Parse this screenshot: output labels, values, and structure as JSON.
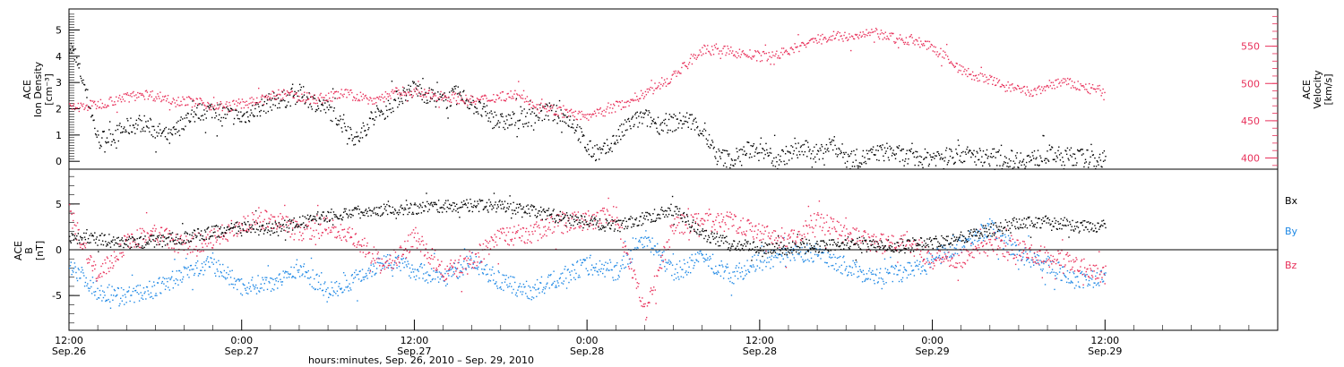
{
  "colors": {
    "black": "#000000",
    "bx": "#000000",
    "by": "#1e88e5",
    "bz": "#e8305a",
    "velocity": "#e8305a",
    "density": "#000000"
  },
  "chart_data": [
    {
      "type": "scatter",
      "panel": "top",
      "ylabel_left": [
        "ACE",
        "Ion Density",
        "[cm⁻³]"
      ],
      "ylabel_right": [
        "ACE",
        "Velocity",
        "[km/s]"
      ],
      "ylim_left": [
        -0.3,
        5.8
      ],
      "ylim_right": [
        385,
        600
      ],
      "ticks_left": [
        "0",
        "1",
        "2",
        "3",
        "4",
        "5"
      ],
      "ticks_left_values": [
        0,
        1,
        2,
        3,
        4,
        5
      ],
      "ticks_right": [
        "400",
        "450",
        "500",
        "550"
      ],
      "ticks_right_values": [
        400,
        450,
        500,
        550
      ],
      "series": [
        {
          "axis": "left",
          "color": "#000000",
          "points": [
            [
              0,
              4.5
            ],
            [
              1,
              3.0
            ],
            [
              2,
              0.8
            ],
            [
              3,
              1.0
            ],
            [
              4,
              1.3
            ],
            [
              5,
              1.5
            ],
            [
              6,
              1.2
            ],
            [
              7,
              0.9
            ],
            [
              8,
              1.6
            ],
            [
              9,
              1.9
            ],
            [
              10,
              2.0
            ],
            [
              11,
              1.8
            ],
            [
              12,
              1.7
            ],
            [
              13,
              2.0
            ],
            [
              14,
              2.3
            ],
            [
              15,
              2.4
            ],
            [
              16,
              2.6
            ],
            [
              17,
              2.3
            ],
            [
              18,
              2.0
            ],
            [
              19,
              1.5
            ],
            [
              20,
              0.8
            ],
            [
              21,
              1.7
            ],
            [
              22,
              2.0
            ],
            [
              23,
              2.5
            ],
            [
              24,
              2.8
            ],
            [
              25,
              2.5
            ],
            [
              26,
              2.3
            ],
            [
              27,
              2.6
            ],
            [
              28,
              2.2
            ],
            [
              29,
              1.8
            ],
            [
              30,
              1.5
            ],
            [
              31,
              1.6
            ],
            [
              32,
              1.7
            ],
            [
              33,
              1.9
            ],
            [
              34,
              1.8
            ],
            [
              35,
              1.5
            ],
            [
              36,
              0.5
            ],
            [
              37,
              0.3
            ],
            [
              38,
              0.9
            ],
            [
              39,
              1.5
            ],
            [
              40,
              1.7
            ],
            [
              41,
              1.4
            ],
            [
              42,
              1.5
            ],
            [
              43,
              1.6
            ],
            [
              44,
              1.2
            ],
            [
              45,
              0.2
            ],
            [
              46,
              0.1
            ],
            [
              47,
              0.4
            ],
            [
              48,
              0.6
            ],
            [
              49,
              0.1
            ],
            [
              50,
              0.3
            ],
            [
              51,
              0.5
            ],
            [
              52,
              0.3
            ],
            [
              53,
              0.7
            ],
            [
              54,
              0.2
            ],
            [
              55,
              0.1
            ],
            [
              56,
              0.3
            ],
            [
              57,
              0.4
            ],
            [
              58,
              0.2
            ],
            [
              59,
              0.1
            ],
            [
              60,
              0.2
            ],
            [
              61,
              0.2
            ],
            [
              62,
              0.3
            ],
            [
              63,
              0.2
            ],
            [
              64,
              0.2
            ],
            [
              65,
              0.1
            ],
            [
              66,
              0.1
            ],
            [
              67,
              0.1
            ],
            [
              68,
              0.3
            ],
            [
              69,
              0.2
            ],
            [
              70,
              0.2
            ],
            [
              71,
              0.1
            ],
            [
              72,
              0.1
            ]
          ]
        },
        {
          "axis": "right",
          "color": "#e8305a",
          "points": [
            [
              0,
              468
            ],
            [
              1,
              470
            ],
            [
              2,
              473
            ],
            [
              3,
              478
            ],
            [
              4,
              482
            ],
            [
              5,
              487
            ],
            [
              6,
              484
            ],
            [
              7,
              480
            ],
            [
              8,
              477
            ],
            [
              9,
              475
            ],
            [
              10,
              471
            ],
            [
              11,
              470
            ],
            [
              12,
              474
            ],
            [
              13,
              476
            ],
            [
              14,
              483
            ],
            [
              15,
              486
            ],
            [
              16,
              483
            ],
            [
              17,
              480
            ],
            [
              18,
              482
            ],
            [
              19,
              487
            ],
            [
              20,
              484
            ],
            [
              21,
              478
            ],
            [
              22,
              484
            ],
            [
              23,
              490
            ],
            [
              24,
              489
            ],
            [
              25,
              485
            ],
            [
              26,
              484
            ],
            [
              27,
              481
            ],
            [
              28,
              477
            ],
            [
              29,
              480
            ],
            [
              30,
              484
            ],
            [
              31,
              485
            ],
            [
              32,
              475
            ],
            [
              33,
              470
            ],
            [
              34,
              463
            ],
            [
              35,
              460
            ],
            [
              36,
              455
            ],
            [
              37,
              462
            ],
            [
              38,
              470
            ],
            [
              39,
              478
            ],
            [
              40,
              488
            ],
            [
              41,
              498
            ],
            [
              42,
              510
            ],
            [
              43,
              530
            ],
            [
              44,
              545
            ],
            [
              45,
              547
            ],
            [
              46,
              543
            ],
            [
              47,
              540
            ],
            [
              48,
              537
            ],
            [
              49,
              538
            ],
            [
              50,
              545
            ],
            [
              51,
              552
            ],
            [
              52,
              560
            ],
            [
              53,
              566
            ],
            [
              54,
              562
            ],
            [
              55,
              565
            ],
            [
              56,
              568
            ],
            [
              57,
              563
            ],
            [
              58,
              560
            ],
            [
              59,
              557
            ],
            [
              60,
              548
            ],
            [
              61,
              535
            ],
            [
              62,
              518
            ],
            [
              63,
              510
            ],
            [
              64,
              505
            ],
            [
              65,
              497
            ],
            [
              66,
              492
            ],
            [
              67,
              488
            ],
            [
              68,
              498
            ],
            [
              69,
              503
            ],
            [
              70,
              498
            ],
            [
              71,
              493
            ],
            [
              72,
              490
            ]
          ]
        }
      ]
    },
    {
      "type": "scatter",
      "panel": "bottom",
      "ylabel_left": [
        "ACE",
        "B",
        "[nT]"
      ],
      "ylim": [
        -8.8,
        8.8
      ],
      "ticks_left": [
        "-5",
        "0",
        "5"
      ],
      "ticks_left_values": [
        -5,
        0,
        5
      ],
      "legend": [
        "Bx",
        "By",
        "Bz"
      ],
      "legend_placement": "right",
      "series": [
        {
          "name": "Bx",
          "color": "#000000",
          "points": [
            [
              0,
              1.5
            ],
            [
              2,
              1.2
            ],
            [
              4,
              0.8
            ],
            [
              6,
              1.0
            ],
            [
              8,
              1.4
            ],
            [
              10,
              2.0
            ],
            [
              12,
              2.5
            ],
            [
              14,
              2.3
            ],
            [
              16,
              3.0
            ],
            [
              18,
              3.8
            ],
            [
              20,
              4.2
            ],
            [
              22,
              4.5
            ],
            [
              24,
              4.6
            ],
            [
              26,
              4.8
            ],
            [
              28,
              4.9
            ],
            [
              30,
              4.8
            ],
            [
              32,
              4.3
            ],
            [
              34,
              3.7
            ],
            [
              36,
              3.0
            ],
            [
              38,
              2.6
            ],
            [
              40,
              3.5
            ],
            [
              42,
              4.5
            ],
            [
              44,
              1.8
            ],
            [
              46,
              0.6
            ],
            [
              48,
              0.3
            ],
            [
              50,
              0.2
            ],
            [
              52,
              0.4
            ],
            [
              54,
              0.8
            ],
            [
              56,
              0.6
            ],
            [
              58,
              0.4
            ],
            [
              60,
              0.9
            ],
            [
              62,
              1.4
            ],
            [
              64,
              2.2
            ],
            [
              66,
              3.0
            ],
            [
              68,
              3.1
            ],
            [
              70,
              2.5
            ],
            [
              72,
              2.8
            ]
          ]
        },
        {
          "name": "By",
          "color": "#1e88e5",
          "points": [
            [
              0,
              -1.5
            ],
            [
              2,
              -4.5
            ],
            [
              4,
              -5.0
            ],
            [
              6,
              -4.2
            ],
            [
              8,
              -2.5
            ],
            [
              10,
              -1.5
            ],
            [
              12,
              -4.0
            ],
            [
              14,
              -3.5
            ],
            [
              16,
              -2.0
            ],
            [
              18,
              -4.5
            ],
            [
              20,
              -3.0
            ],
            [
              22,
              -1.0
            ],
            [
              24,
              -2.2
            ],
            [
              26,
              -3.0
            ],
            [
              28,
              -1.2
            ],
            [
              30,
              -3.5
            ],
            [
              32,
              -4.5
            ],
            [
              34,
              -3.0
            ],
            [
              36,
              -1.6
            ],
            [
              38,
              -2.4
            ],
            [
              40,
              1.5
            ],
            [
              42,
              -2.5
            ],
            [
              44,
              -0.8
            ],
            [
              46,
              -2.8
            ],
            [
              48,
              -1.2
            ],
            [
              50,
              -0.6
            ],
            [
              52,
              -0.2
            ],
            [
              54,
              -1.8
            ],
            [
              56,
              -3.0
            ],
            [
              58,
              -2.3
            ],
            [
              60,
              -1.0
            ],
            [
              62,
              0.8
            ],
            [
              64,
              2.5
            ],
            [
              66,
              -0.5
            ],
            [
              68,
              -1.5
            ],
            [
              70,
              -3.4
            ],
            [
              72,
              -2.8
            ]
          ]
        },
        {
          "name": "Bz",
          "color": "#e8305a",
          "points": [
            [
              0,
              4.0
            ],
            [
              2,
              -3.0
            ],
            [
              4,
              1.0
            ],
            [
              6,
              1.8
            ],
            [
              8,
              0.5
            ],
            [
              10,
              1.2
            ],
            [
              12,
              2.8
            ],
            [
              14,
              3.5
            ],
            [
              16,
              2.0
            ],
            [
              18,
              2.6
            ],
            [
              20,
              1.0
            ],
            [
              22,
              -2.0
            ],
            [
              24,
              1.5
            ],
            [
              26,
              -2.5
            ],
            [
              28,
              -1.0
            ],
            [
              30,
              1.5
            ],
            [
              32,
              1.8
            ],
            [
              34,
              3.0
            ],
            [
              36,
              3.3
            ],
            [
              38,
              3.8
            ],
            [
              40,
              -6.8
            ],
            [
              42,
              2.8
            ],
            [
              44,
              3.0
            ],
            [
              46,
              3.2
            ],
            [
              48,
              2.0
            ],
            [
              50,
              1.0
            ],
            [
              52,
              3.5
            ],
            [
              54,
              1.8
            ],
            [
              56,
              0.6
            ],
            [
              58,
              1.2
            ],
            [
              60,
              -1.0
            ],
            [
              62,
              -0.8
            ],
            [
              64,
              0.6
            ],
            [
              66,
              0.0
            ],
            [
              68,
              -0.8
            ],
            [
              70,
              -1.4
            ],
            [
              72,
              -2.6
            ]
          ]
        }
      ]
    }
  ],
  "xaxis": {
    "title": "hours:minutes, Sep. 26, 2010 – Sep. 29, 2010",
    "range_hours": [
      0,
      84
    ],
    "ticks": [
      {
        "h": 0,
        "time": "12:00",
        "date": "Sep.26"
      },
      {
        "h": 12,
        "time": "0:00",
        "date": "Sep.27"
      },
      {
        "h": 24,
        "time": "12:00",
        "date": "Sep.27"
      },
      {
        "h": 36,
        "time": "0:00",
        "date": "Sep.28"
      },
      {
        "h": 48,
        "time": "12:00",
        "date": "Sep.28"
      },
      {
        "h": 60,
        "time": "0:00",
        "date": "Sep.29"
      },
      {
        "h": 72,
        "time": "12:00",
        "date": "Sep.29"
      }
    ]
  }
}
